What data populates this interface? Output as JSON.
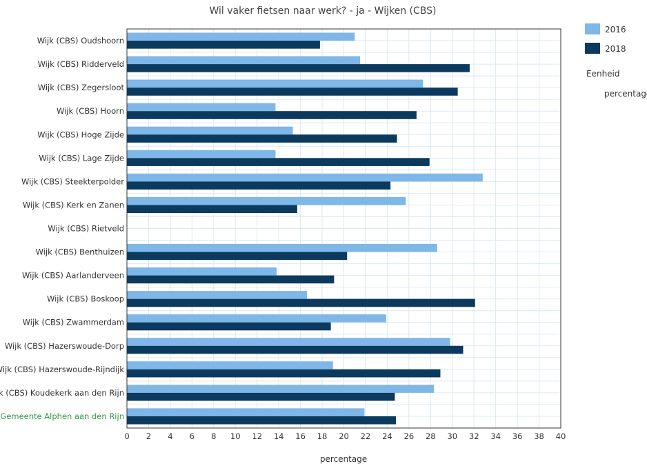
{
  "chart_data": {
    "type": "bar",
    "orientation": "horizontal",
    "title": "Wil vaker fietsen naar werk? - ja - Wijken (CBS)",
    "xlabel": "percentage",
    "ylabel": "",
    "xlim": [
      0,
      40
    ],
    "xticks": [
      0,
      2,
      4,
      6,
      8,
      10,
      12,
      14,
      16,
      18,
      20,
      22,
      24,
      26,
      28,
      30,
      32,
      34,
      36,
      38,
      40
    ],
    "grid": true,
    "legend_position": "right",
    "categories": [
      "Wijk (CBS) Oudshoorn",
      "Wijk (CBS) Ridderveld",
      "Wijk (CBS) Zegersloot",
      "Wijk (CBS) Hoorn",
      "Wijk (CBS) Hoge Zijde",
      "Wijk (CBS) Lage Zijde",
      "Wijk (CBS) Steekterpolder",
      "Wijk (CBS) Kerk en Zanen",
      "Wijk (CBS) Rietveld",
      "Wijk (CBS) Benthuizen",
      "Wijk (CBS) Aarlanderveen",
      "Wijk (CBS) Boskoop",
      "Wijk (CBS) Zwammerdam",
      "Wijk (CBS) Hazerswoude-Dorp",
      "Wijk (CBS) Hazerswoude-Rijndijk",
      "Wijk (CBS) Koudekerk aan den Rijn",
      "Gemeente Alphen aan den Rijn"
    ],
    "highlight_category": "Gemeente Alphen aan den Rijn",
    "series": [
      {
        "name": "2016",
        "color": "#7fb7e8",
        "values": [
          21.0,
          21.5,
          27.3,
          13.7,
          15.3,
          13.7,
          32.8,
          25.7,
          null,
          28.6,
          13.8,
          16.6,
          23.9,
          29.8,
          19.0,
          28.3,
          21.9
        ]
      },
      {
        "name": "2018",
        "color": "#0c3a5f",
        "values": [
          17.8,
          31.6,
          30.5,
          26.7,
          24.9,
          27.9,
          24.3,
          15.7,
          null,
          20.3,
          19.1,
          32.1,
          18.8,
          31.0,
          28.9,
          24.7,
          24.8
        ]
      }
    ],
    "legend_extra": {
      "heading": "Eenheid",
      "value": "percentage"
    }
  },
  "colors": {
    "highlight_label": "#2e9a44",
    "grid": "#dce8f2",
    "frame": "#333333"
  }
}
